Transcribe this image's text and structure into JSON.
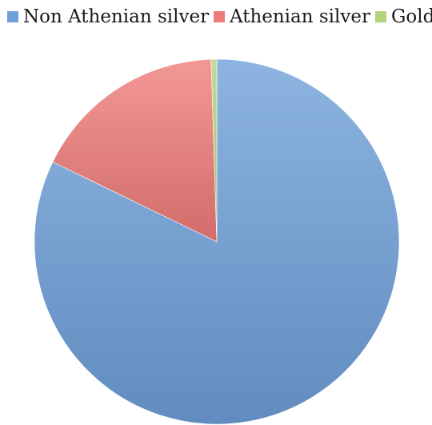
{
  "chart_data": {
    "type": "pie",
    "title": "",
    "legend_position": "top",
    "start_angle_deg": 0,
    "direction": "clockwise",
    "slices": [
      {
        "name": "Non Athenian silver",
        "value": 82.2,
        "color": "#6d9fd9"
      },
      {
        "name": "Athenian silver",
        "value": 17.3,
        "color": "#ef7b78"
      },
      {
        "name": "Gold",
        "value": 0.5,
        "color": "#b3d47a"
      }
    ]
  }
}
